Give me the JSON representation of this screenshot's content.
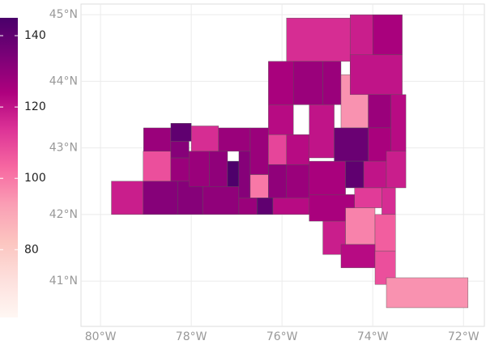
{
  "chart_data": {
    "type": "choropleth",
    "xlim": [
      -80.43,
      -71.54
    ],
    "ylim": [
      40.32,
      45.16
    ],
    "xticks": [
      {
        "value": -80,
        "label": "80°W"
      },
      {
        "value": -78,
        "label": "78°W"
      },
      {
        "value": -76,
        "label": "76°W"
      },
      {
        "value": -74,
        "label": "74°W"
      },
      {
        "value": -72,
        "label": "72°W"
      }
    ],
    "yticks": [
      {
        "value": 41,
        "label": "41°N"
      },
      {
        "value": 42,
        "label": "42°N"
      },
      {
        "value": 43,
        "label": "43°N"
      },
      {
        "value": 44,
        "label": "44°N"
      },
      {
        "value": 45,
        "label": "45°N"
      }
    ],
    "grid": true,
    "values": [
      118,
      132,
      132,
      130,
      128,
      140,
      122,
      108,
      128,
      128,
      140,
      132,
      128,
      115,
      130,
      144,
      128,
      132,
      100,
      128,
      110,
      130,
      128,
      122,
      122,
      125,
      115,
      118,
      125,
      128,
      120,
      128,
      95,
      120,
      128,
      122,
      125,
      138,
      125,
      140,
      120,
      118,
      125,
      112,
      115,
      118,
      98,
      105,
      122,
      108,
      95
    ],
    "colorbar": {
      "lim": [
        61,
        145
      ],
      "ticks": [
        80,
        100,
        120,
        140
      ],
      "colors": [
        "#fff7f3",
        "#fde0dd",
        "#fcc5c0",
        "#fa9fb5",
        "#f768a1",
        "#dd3497",
        "#ae017e",
        "#7a0177",
        "#49006a"
      ]
    }
  }
}
